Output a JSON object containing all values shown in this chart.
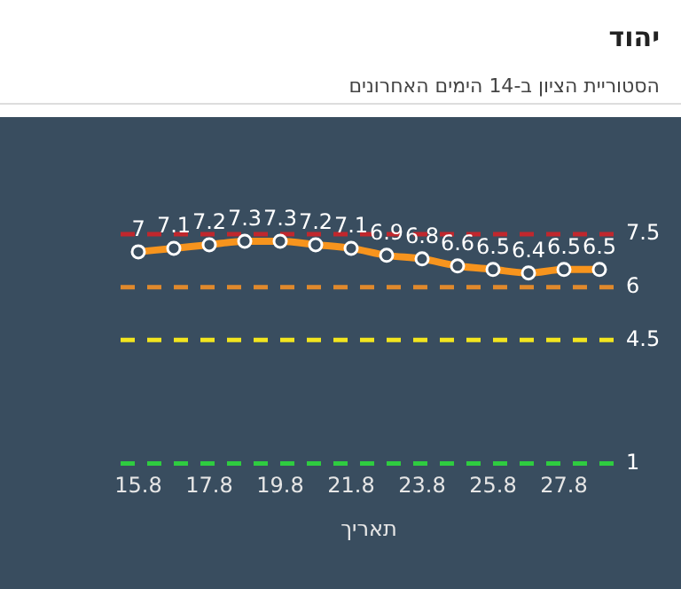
{
  "chart_data": {
    "type": "line",
    "title": "יהוד",
    "subtitle": "הסטוריית הציון ב-14 הימים האחרונים",
    "xlabel": "תאריך",
    "categories": [
      "15.8",
      null,
      "17.8",
      null,
      "19.8",
      null,
      "21.8",
      null,
      "23.8",
      null,
      "25.8",
      null,
      "27.8",
      null
    ],
    "series": [
      {
        "color": "#f7941d",
        "values": [
          7,
          7.1,
          7.2,
          7.3,
          7.3,
          7.2,
          7.1,
          6.9,
          6.8,
          6.6,
          6.5,
          6.4,
          6.5,
          6.5
        ]
      }
    ],
    "tick_labels": "x",
    "grid": false,
    "legend": false,
    "marker": "circle",
    "data_labels": true,
    "ref_lines": [
      {
        "axis": "y",
        "value": 7.5,
        "label": "7.5",
        "color": "#c1272d",
        "line_style": "dashed"
      },
      {
        "axis": "y",
        "value": 6,
        "label": "6",
        "color": "#e0892c",
        "line_style": "dashed"
      },
      {
        "axis": "y",
        "value": 4.5,
        "label": "4.5",
        "color": "#f2e51f",
        "line_style": "dashed"
      },
      {
        "axis": "y",
        "value": 1,
        "label": "1",
        "color": "#2ecc40",
        "line_style": "dashed"
      }
    ]
  }
}
